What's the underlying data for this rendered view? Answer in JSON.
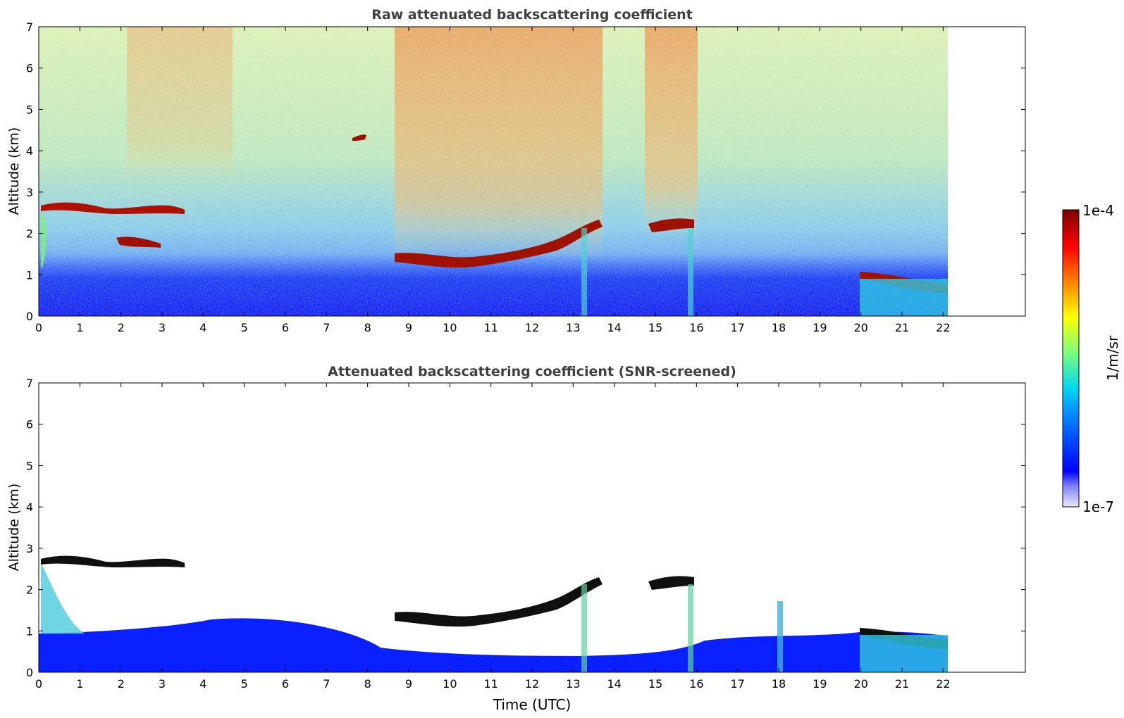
{
  "chart_data": [
    {
      "type": "heatmap",
      "title": "Raw attenuated backscattering coefficient",
      "xlabel": "",
      "ylabel": "Altitude (km)",
      "xlim": [
        0,
        24
      ],
      "ylim": [
        0,
        7
      ],
      "x_ticks": [
        "0",
        "1",
        "2",
        "3",
        "4",
        "5",
        "6",
        "7",
        "8",
        "9",
        "10",
        "11",
        "12",
        "13",
        "14",
        "15",
        "16",
        "17",
        "18",
        "19",
        "20",
        "21",
        "22"
      ],
      "y_ticks": [
        "0",
        "1",
        "2",
        "3",
        "4",
        "5",
        "6",
        "7"
      ],
      "data_end_time": 22.15,
      "features": [
        {
          "feature": "cloud layer",
          "time_start": 0.0,
          "time_end": 3.2,
          "altitude_km": 2.65
        },
        {
          "feature": "cloud layer",
          "time_start": 1.9,
          "time_end": 2.8,
          "altitude_km": 1.8
        },
        {
          "feature": "cloud",
          "time_start": 7.6,
          "time_end": 7.9,
          "altitude_km": 4.3
        },
        {
          "feature": "cloud layer",
          "time_start": 8.6,
          "time_end": 13.7,
          "altitude_km": 1.4
        },
        {
          "feature": "cloud layer",
          "time_start": 14.8,
          "time_end": 16.0,
          "altitude_km": 2.1
        },
        {
          "feature": "cloud layer",
          "time_start": 20.1,
          "time_end": 22.15,
          "altitude_km": 0.9
        }
      ]
    },
    {
      "type": "heatmap",
      "title": "Attenuated backscattering coefficient (SNR-screened)",
      "xlabel": "Time (UTC)",
      "ylabel": "Altitude (km)",
      "xlim": [
        0,
        24
      ],
      "ylim": [
        0,
        7
      ],
      "x_ticks": [
        "0",
        "1",
        "2",
        "3",
        "4",
        "5",
        "6",
        "7",
        "8",
        "9",
        "10",
        "11",
        "12",
        "13",
        "14",
        "15",
        "16",
        "17",
        "18",
        "19",
        "20",
        "21",
        "22"
      ],
      "y_ticks": [
        "0",
        "1",
        "2",
        "3",
        "4",
        "5",
        "6",
        "7"
      ],
      "data_end_time": 22.15
    }
  ],
  "colorbar": {
    "label": "1/m/sr",
    "max_label": "1e-4",
    "min_label": "1e-7",
    "scale": "log",
    "range": [
      1e-07,
      0.0001
    ],
    "colormap": [
      "#e8e8f8",
      "#0000ff",
      "#00c8ff",
      "#7dff7a",
      "#ffff00",
      "#ff6600",
      "#ff0000",
      "#800000"
    ]
  }
}
